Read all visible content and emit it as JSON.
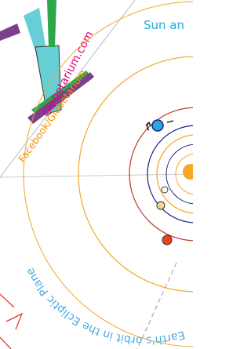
{
  "texts": {
    "sun_label": "Sun an",
    "site": "Globetarium.com",
    "facebook": "Facebook/Globetarium",
    "ecliptic": "Earth's orbit in the Ecliptic Plane"
  }
}
